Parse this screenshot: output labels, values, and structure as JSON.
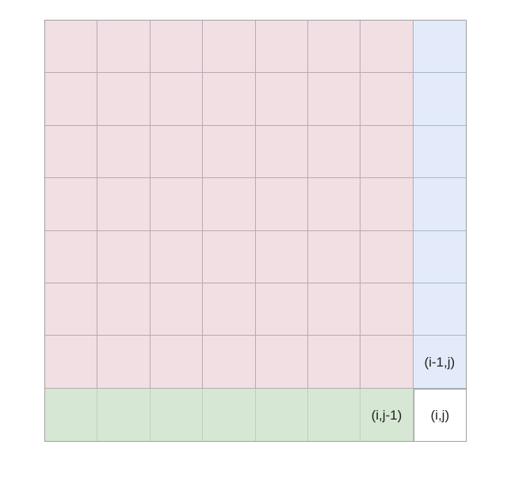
{
  "grid": {
    "rows": 8,
    "cols": 8,
    "regions": {
      "pink": "#f1dfe3",
      "blue": "#e3ebfb",
      "green": "#d6e8d4",
      "target": "#ffffff"
    },
    "labels": {
      "above": "(i-1,j)",
      "left": "(i,j-1)",
      "current": "(i,j)"
    }
  }
}
